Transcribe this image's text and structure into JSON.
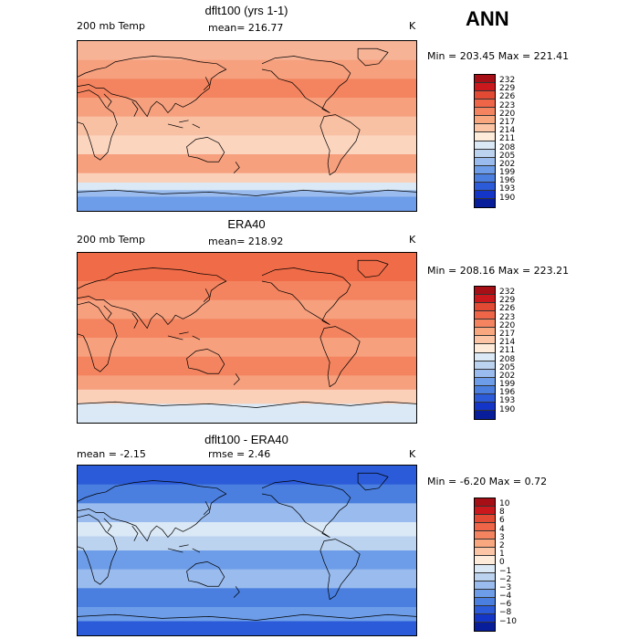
{
  "header": {
    "season": "ANN"
  },
  "panels": [
    {
      "title": "dflt100 (yrs 1-1)",
      "left_label": "200 mb Temp",
      "stat_label": "mean= 216.77",
      "units": "K",
      "minmax": "Min = 203.45 Max = 221.41",
      "colorbar": {
        "ticks": [
          "232",
          "229",
          "226",
          "223",
          "220",
          "217",
          "214",
          "211",
          "208",
          "205",
          "202",
          "199",
          "196",
          "193",
          "190"
        ],
        "colors": [
          "#a50f15",
          "#cb181d",
          "#e34a33",
          "#ef6548",
          "#f4845f",
          "#f9a77e",
          "#fcc6a6",
          "#feebd9",
          "#dbe9f6",
          "#bcd3f0",
          "#99bbee",
          "#6d9de8",
          "#4a7fe0",
          "#2b5bd8",
          "#1436c8",
          "#081d9a"
        ]
      },
      "field": {
        "bands": [
          {
            "lat": 90,
            "color": "#f7b396"
          },
          {
            "lat": 70,
            "color": "#f6a07e"
          },
          {
            "lat": 50,
            "color": "#f4845f"
          },
          {
            "lat": 30,
            "color": "#f6a07e"
          },
          {
            "lat": 10,
            "color": "#f9c1a4"
          },
          {
            "lat": -10,
            "color": "#fcd5bf"
          },
          {
            "lat": -30,
            "color": "#f6a07e"
          },
          {
            "lat": -50,
            "color": "#fbd0b8"
          },
          {
            "lat": -60,
            "color": "#dbe9f6"
          },
          {
            "lat": -68,
            "color": "#99bbee"
          },
          {
            "lat": -75,
            "color": "#6d9de8"
          }
        ]
      }
    },
    {
      "title": "ERA40",
      "left_label": "200 mb Temp",
      "stat_label": "mean= 218.92",
      "units": "K",
      "minmax": "Min = 208.16 Max = 223.21",
      "colorbar": {
        "ticks": [
          "232",
          "229",
          "226",
          "223",
          "220",
          "217",
          "214",
          "211",
          "208",
          "205",
          "202",
          "199",
          "196",
          "193",
          "190"
        ],
        "colors": [
          "#a50f15",
          "#cb181d",
          "#e34a33",
          "#ef6548",
          "#f4845f",
          "#f9a77e",
          "#fcc6a6",
          "#feebd9",
          "#dbe9f6",
          "#bcd3f0",
          "#99bbee",
          "#6d9de8",
          "#4a7fe0",
          "#2b5bd8",
          "#1436c8",
          "#081d9a"
        ]
      },
      "field": {
        "bands": [
          {
            "lat": 90,
            "color": "#f06b47"
          },
          {
            "lat": 60,
            "color": "#f4845f"
          },
          {
            "lat": 40,
            "color": "#f6a07e"
          },
          {
            "lat": 20,
            "color": "#f4845f"
          },
          {
            "lat": 0,
            "color": "#f6a07e"
          },
          {
            "lat": -20,
            "color": "#f4845f"
          },
          {
            "lat": -40,
            "color": "#f6a07e"
          },
          {
            "lat": -55,
            "color": "#fbd0b8"
          },
          {
            "lat": -70,
            "color": "#dbe9f6"
          }
        ]
      }
    },
    {
      "title": "dflt100 - ERA40",
      "left_label": "mean =  -2.15",
      "stat_label": "rmse =   2.46",
      "units": "K",
      "minmax": "Min =  -6.20 Max =   0.72",
      "colorbar": {
        "ticks": [
          "10",
          "8",
          "6",
          "4",
          "3",
          "2",
          "1",
          "0",
          "−1",
          "−2",
          "−3",
          "−4",
          "−6",
          "−8",
          "−10"
        ],
        "colors": [
          "#a50f15",
          "#cb181d",
          "#e34a33",
          "#ef6548",
          "#f4845f",
          "#f9a77e",
          "#fcc6a6",
          "#feebd9",
          "#dbe9f6",
          "#bcd3f0",
          "#99bbee",
          "#6d9de8",
          "#4a7fe0",
          "#2b5bd8",
          "#1436c8",
          "#081d9a"
        ]
      },
      "field": {
        "bands": [
          {
            "lat": 90,
            "color": "#2b5bd8"
          },
          {
            "lat": 70,
            "color": "#4a7fe0"
          },
          {
            "lat": 50,
            "color": "#99bbee"
          },
          {
            "lat": 30,
            "color": "#dbe9f6"
          },
          {
            "lat": 15,
            "color": "#bcd3f0"
          },
          {
            "lat": 0,
            "color": "#6d9de8"
          },
          {
            "lat": -20,
            "color": "#99bbee"
          },
          {
            "lat": -40,
            "color": "#4a7fe0"
          },
          {
            "lat": -60,
            "color": "#6d9de8"
          },
          {
            "lat": -75,
            "color": "#2b5bd8"
          }
        ]
      }
    }
  ],
  "chart_data": [
    {
      "type": "heatmap",
      "title": "dflt100 (yrs 1-1)",
      "variable": "200 mb Temp",
      "units": "K",
      "mean": 216.77,
      "min": 203.45,
      "max": 221.41,
      "colorbar_levels": [
        232,
        229,
        226,
        223,
        220,
        217,
        214,
        211,
        208,
        205,
        202,
        199,
        196,
        193,
        190
      ]
    },
    {
      "type": "heatmap",
      "title": "ERA40",
      "variable": "200 mb Temp",
      "units": "K",
      "mean": 218.92,
      "min": 208.16,
      "max": 223.21,
      "colorbar_levels": [
        232,
        229,
        226,
        223,
        220,
        217,
        214,
        211,
        208,
        205,
        202,
        199,
        196,
        193,
        190
      ]
    },
    {
      "type": "heatmap",
      "title": "dflt100 - ERA40",
      "units": "K",
      "mean": -2.15,
      "rmse": 2.46,
      "min": -6.2,
      "max": 0.72,
      "colorbar_levels": [
        10,
        8,
        6,
        4,
        3,
        2,
        1,
        0,
        -1,
        -2,
        -3,
        -4,
        -6,
        -8,
        -10
      ]
    }
  ]
}
